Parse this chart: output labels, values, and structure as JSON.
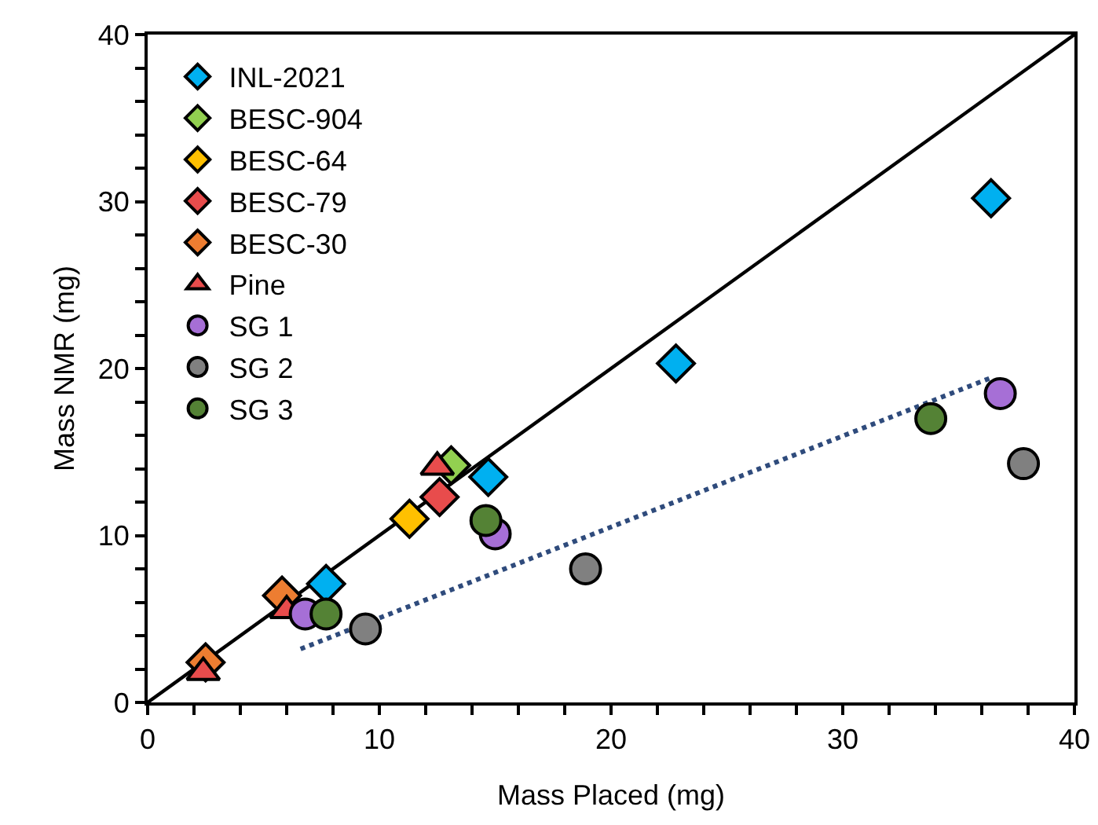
{
  "chart_data": {
    "type": "scatter",
    "xlabel": "Mass Placed (mg)",
    "ylabel": "Mass NMR (mg)",
    "xlim": [
      0,
      40
    ],
    "ylim": [
      0,
      40
    ],
    "xticks": [
      0,
      {
        "value": 2,
        "label": null
      },
      {
        "value": 4,
        "label": null
      },
      {
        "value": 6,
        "label": null
      },
      {
        "value": 8,
        "label": null
      },
      10,
      {
        "value": 12,
        "label": null
      },
      {
        "value": 14,
        "label": null
      },
      {
        "value": 16,
        "label": null
      },
      {
        "value": 18,
        "label": null
      },
      20,
      {
        "value": 22,
        "label": null
      },
      {
        "value": 24,
        "label": null
      },
      {
        "value": 26,
        "label": null
      },
      {
        "value": 28,
        "label": null
      },
      30,
      {
        "value": 32,
        "label": null
      },
      {
        "value": 34,
        "label": null
      },
      {
        "value": 36,
        "label": null
      },
      {
        "value": 38,
        "label": null
      },
      40
    ],
    "yticks": [
      0,
      {
        "value": 2,
        "label": null
      },
      {
        "value": 4,
        "label": null
      },
      {
        "value": 6,
        "label": null
      },
      {
        "value": 8,
        "label": null
      },
      10,
      {
        "value": 12,
        "label": null
      },
      {
        "value": 14,
        "label": null
      },
      {
        "value": 16,
        "label": null
      },
      {
        "value": 18,
        "label": null
      },
      20,
      {
        "value": 22,
        "label": null
      },
      {
        "value": 24,
        "label": null
      },
      {
        "value": 26,
        "label": null
      },
      {
        "value": 28,
        "label": null
      },
      30,
      {
        "value": 32,
        "label": null
      },
      {
        "value": 34,
        "label": null
      },
      {
        "value": 36,
        "label": null
      },
      {
        "value": 38,
        "label": null
      },
      40
    ],
    "grid": false,
    "legend": "top left",
    "series": [
      {
        "type": "line",
        "color": "#000000",
        "marker": "none",
        "line_style": "solid",
        "x": [
          0,
          40
        ],
        "values": [
          0,
          40
        ]
      },
      {
        "type": "line",
        "color": "#2f4b7c",
        "marker": "none",
        "line_style": "dotted",
        "x": [
          6.6,
          36.5
        ],
        "values": [
          3.2,
          19.5
        ]
      },
      {
        "name": "INL-2021",
        "color": "#00b0f0",
        "marker": "diamond",
        "x": [
          36.4,
          22.8,
          14.7,
          7.7
        ],
        "values": [
          30.2,
          20.3,
          13.5,
          7.1
        ]
      },
      {
        "name": "BESC-904",
        "color": "#92d050",
        "marker": "diamond",
        "x": [
          13.1
        ],
        "values": [
          14.2
        ]
      },
      {
        "name": "BESC-64",
        "color": "#ffc000",
        "marker": "diamond",
        "x": [
          11.3
        ],
        "values": [
          11.0
        ]
      },
      {
        "name": "BESC-79",
        "color": "#e84c4c",
        "marker": "diamond",
        "x": [
          12.6
        ],
        "values": [
          12.3
        ]
      },
      {
        "name": "BESC-30",
        "color": "#ed7d31",
        "marker": "diamond",
        "x": [
          5.8,
          2.5
        ],
        "values": [
          6.4,
          2.4
        ]
      },
      {
        "name": "Pine",
        "color": "#e84c4c",
        "marker": "triangle",
        "x": [
          12.5,
          6.0,
          2.4
        ],
        "values": [
          14.1,
          5.5,
          1.8
        ]
      },
      {
        "name": "SG 1",
        "color": "#a66fd6",
        "marker": "circle",
        "x": [
          6.8,
          15.0,
          36.8
        ],
        "values": [
          5.3,
          10.1,
          18.5
        ]
      },
      {
        "name": "SG 2",
        "color": "#808080",
        "marker": "circle",
        "x": [
          9.4,
          18.9,
          37.8
        ],
        "values": [
          4.4,
          8.0,
          14.3
        ]
      },
      {
        "name": "SG 3",
        "color": "#548235",
        "marker": "circle",
        "x": [
          7.7,
          14.6,
          33.8
        ],
        "values": [
          5.3,
          10.9,
          17.0
        ]
      }
    ]
  }
}
